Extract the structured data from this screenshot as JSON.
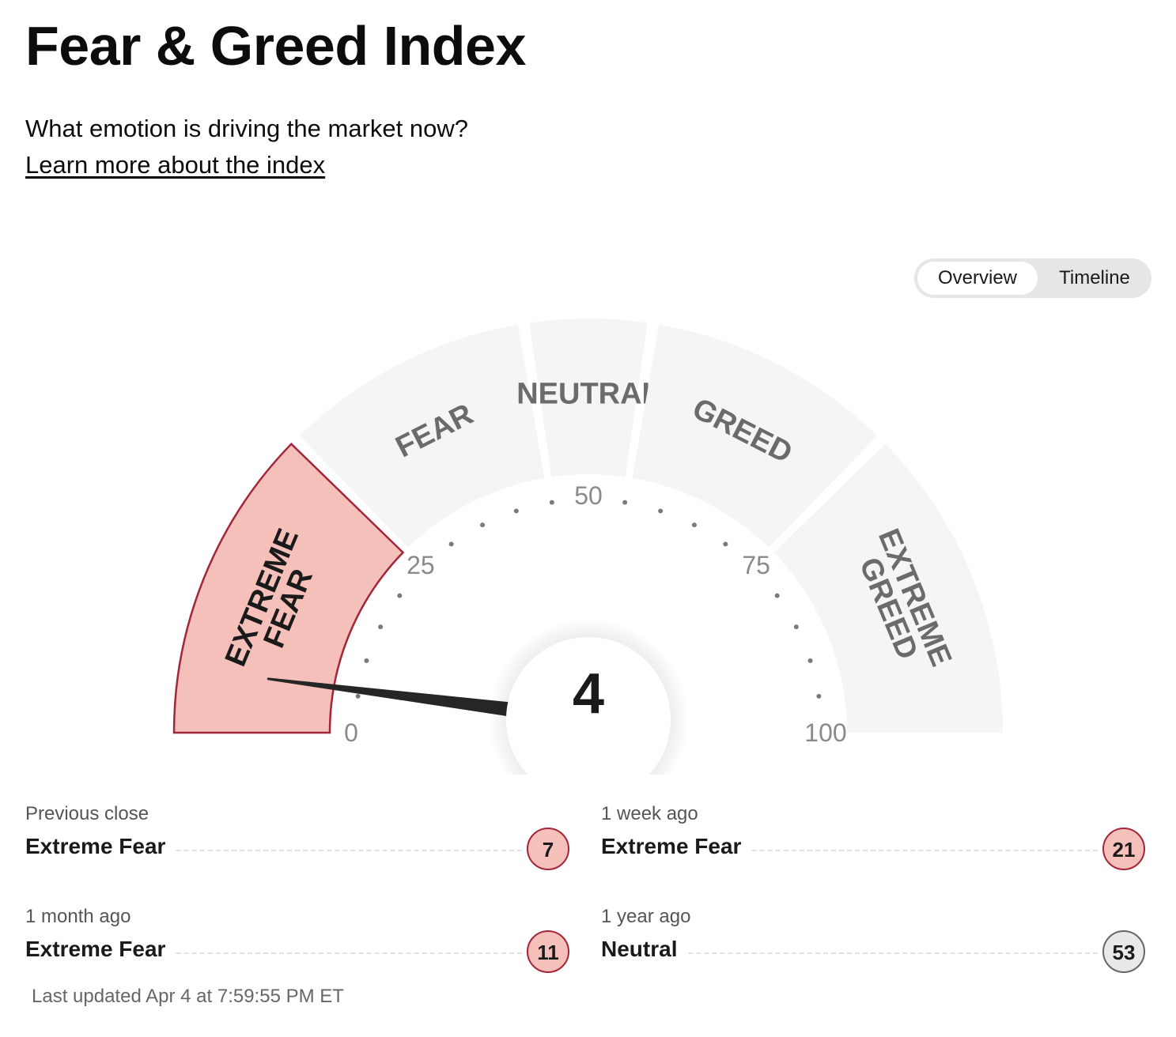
{
  "title": "Fear & Greed Index",
  "subtitle": "What emotion is driving the market now?",
  "learn_more": "Learn more about the index",
  "view_toggle": {
    "options": [
      "Overview",
      "Timeline"
    ],
    "selected": "Overview"
  },
  "gauge": {
    "value": 4,
    "value_text": "4",
    "current_zone": "EXTREME FEAR",
    "zones": [
      {
        "label": "EXTREME FEAR",
        "range": [
          0,
          25
        ]
      },
      {
        "label": "FEAR",
        "range": [
          25,
          45
        ]
      },
      {
        "label": "NEUTRAL",
        "range": [
          45,
          55
        ]
      },
      {
        "label": "GREED",
        "range": [
          55,
          75
        ]
      },
      {
        "label": "EXTREME GREED",
        "range": [
          75,
          100
        ]
      }
    ],
    "scale_labels": [
      "0",
      "25",
      "50",
      "75",
      "100"
    ],
    "colors": {
      "active_fill": "#f4c0b9",
      "active_stroke": "#a3253a",
      "zone_fill": "#f5f5f5",
      "zone_text": "#6b6b6b",
      "active_text": "#1a1a1a",
      "needle": "#262626"
    }
  },
  "history": [
    {
      "label": "Previous close",
      "status": "Extreme Fear",
      "value": "7",
      "kind": "fear"
    },
    {
      "label": "1 week ago",
      "status": "Extreme Fear",
      "value": "21",
      "kind": "fear"
    },
    {
      "label": "1 month ago",
      "status": "Extreme Fear",
      "value": "11",
      "kind": "fear"
    },
    {
      "label": "1 year ago",
      "status": "Neutral",
      "value": "53",
      "kind": "neutral"
    }
  ],
  "last_updated": "Last updated Apr 4 at 7:59:55 PM ET"
}
